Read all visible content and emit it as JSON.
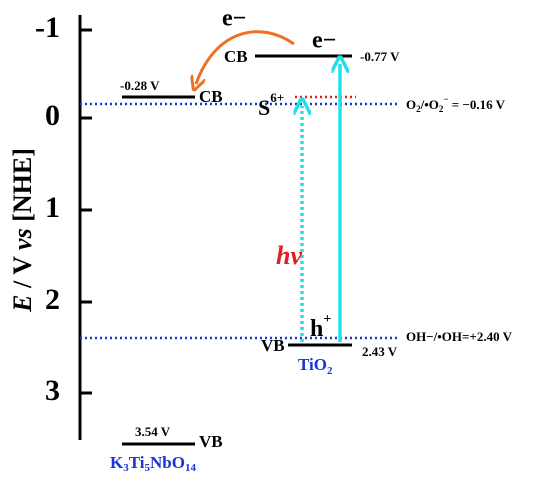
{
  "axis": {
    "label": [
      "E",
      " / V ",
      "vs",
      " [NHE]"
    ],
    "ticks": [
      "-1",
      "0",
      "1",
      "2",
      "3"
    ]
  },
  "k3ti5nbo14": {
    "cb_value": "-0.28 V",
    "cb": "CB",
    "vb_value": "3.54 V",
    "vb": "VB",
    "name": [
      "K",
      "3",
      "Ti",
      "5",
      "NbO",
      "14"
    ]
  },
  "tio2": {
    "cb": "CB",
    "cb_value": "-0.77 V",
    "electron": "e−",
    "vb": "VB",
    "vb_value": "2.43 V",
    "hole": [
      "h",
      "+"
    ],
    "name": [
      "TiO",
      "2"
    ],
    "sulfur": [
      "S",
      "6+"
    ]
  },
  "transfer_electron": "e−",
  "photon": "hv",
  "potentials": {
    "superoxide": [
      "O",
      "2",
      "/•O",
      "2",
      "−",
      " = −0.16 V"
    ],
    "hydroxyl": "OH−/•OH=+2.40 V"
  }
}
